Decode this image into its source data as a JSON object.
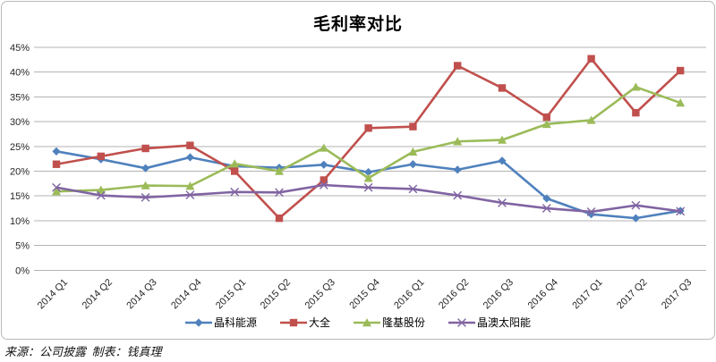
{
  "title": "毛利率对比",
  "footer": "来源：公司披露  制表：钱真理",
  "y_axis_labels": [
    "45%",
    "40%",
    "35%",
    "30%",
    "25%",
    "20%",
    "15%",
    "10%",
    "5%",
    "0%"
  ],
  "chart_data": {
    "type": "line",
    "title": "毛利率对比",
    "categories": [
      "2014 Q1",
      "2014 Q2",
      "2014 Q3",
      "2014 Q4",
      "2015 Q1",
      "2015 Q2",
      "2015 Q3",
      "2015 Q4",
      "2016 Q1",
      "2016 Q2",
      "2016 Q3",
      "2016 Q4",
      "2017 Q1",
      "2017 Q2",
      "2017 Q3"
    ],
    "series": [
      {
        "name": "晶科能源",
        "color": "#4F81BD",
        "marker": "diamond",
        "values": [
          24.0,
          22.4,
          20.6,
          22.8,
          21.0,
          20.7,
          21.3,
          19.8,
          21.4,
          20.3,
          22.1,
          14.5,
          11.3,
          10.5,
          12.0
        ]
      },
      {
        "name": "大全",
        "color": "#C0504D",
        "marker": "square",
        "values": [
          21.4,
          23.0,
          24.6,
          25.2,
          20.0,
          10.5,
          18.2,
          28.7,
          29.0,
          41.3,
          36.8,
          30.9,
          42.7,
          31.8,
          40.3
        ]
      },
      {
        "name": "隆基股份",
        "color": "#9BBB59",
        "marker": "triangle",
        "values": [
          15.9,
          16.2,
          17.1,
          17.0,
          21.5,
          20.0,
          24.7,
          18.6,
          23.9,
          26.0,
          26.3,
          29.5,
          30.3,
          37.0,
          33.8
        ]
      },
      {
        "name": "晶澳太阳能",
        "color": "#8064A2",
        "marker": "x",
        "values": [
          16.7,
          15.1,
          14.7,
          15.2,
          15.8,
          15.7,
          17.2,
          16.7,
          16.4,
          15.1,
          13.6,
          12.5,
          11.8,
          13.1,
          11.9
        ]
      }
    ],
    "ylim": [
      0,
      45
    ],
    "ytick_step": 5,
    "grid": "horizontal",
    "legend_position": "bottom",
    "gridline_color": "#b3b3b3"
  }
}
